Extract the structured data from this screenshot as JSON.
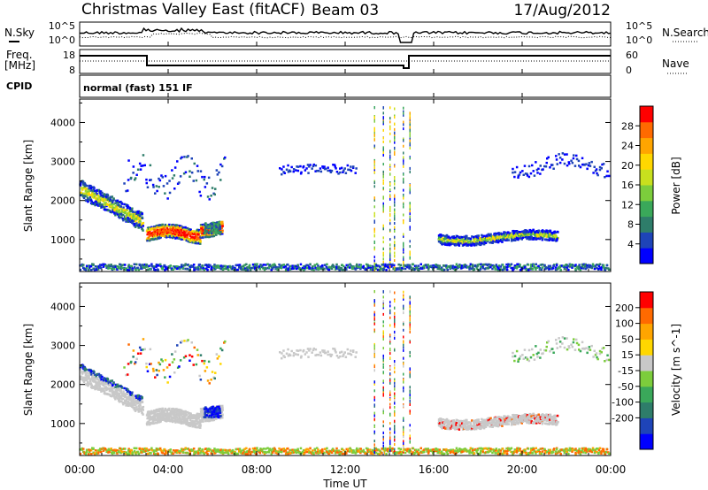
{
  "header": {
    "title": "Christmas Valley East (fitACF)",
    "beam": "Beam 03",
    "date": "17/Aug/2012"
  },
  "noise_panel": {
    "left_label": "N.Sky",
    "right_label": "N.Search",
    "left_ticks": [
      "10^5",
      "10^0"
    ],
    "right_ticks": [
      "10^5",
      "10^0"
    ]
  },
  "freq_panel": {
    "left_label_line1": "Freq.",
    "left_label_line2": "[MHz]",
    "right_label": "Nave",
    "left_ticks": [
      "18",
      "8"
    ],
    "right_ticks": [
      "60",
      "0"
    ]
  },
  "cpid": {
    "label": "CPID",
    "value": "normal (fast) 151 IF"
  },
  "chart_data": [
    {
      "type": "heatmap",
      "name": "power",
      "ylabel": "Slant Range [km]",
      "ylim": [
        180,
        4600
      ],
      "yticks": [
        1000,
        2000,
        3000,
        4000
      ],
      "colorbar": {
        "label": "Power [dB]",
        "range": [
          0,
          32
        ],
        "ticks": [
          4,
          8,
          12,
          16,
          20,
          24,
          28
        ],
        "colors": [
          "#0000ff",
          "#1e44b8",
          "#2e7d6a",
          "#3aa85a",
          "#7ccd3c",
          "#c8e01e",
          "#ffd700",
          "#ffa500",
          "#ff6a00",
          "#ff0000"
        ]
      }
    },
    {
      "type": "heatmap",
      "name": "velocity",
      "ylabel": "Slant Range [km]",
      "ylim": [
        180,
        4600
      ],
      "yticks": [
        1000,
        2000,
        3000,
        4000
      ],
      "colorbar": {
        "label": "Velocity [m s^-1]",
        "ticks": [
          200,
          100,
          50,
          15,
          -15,
          -50,
          -100,
          -200
        ],
        "colors": [
          "#0000ff",
          "#1e44b8",
          "#2e7d6a",
          "#3aa85a",
          "#7ccd3c",
          "#c8c8c8",
          "#ffd700",
          "#ffa500",
          "#ff6a00",
          "#ff0000"
        ]
      }
    }
  ],
  "xaxis": {
    "label": "Time UT",
    "ticks": [
      "00:00",
      "04:00",
      "08:00",
      "12:00",
      "16:00",
      "20:00",
      "00:00"
    ],
    "range_hours": [
      0,
      24
    ]
  }
}
